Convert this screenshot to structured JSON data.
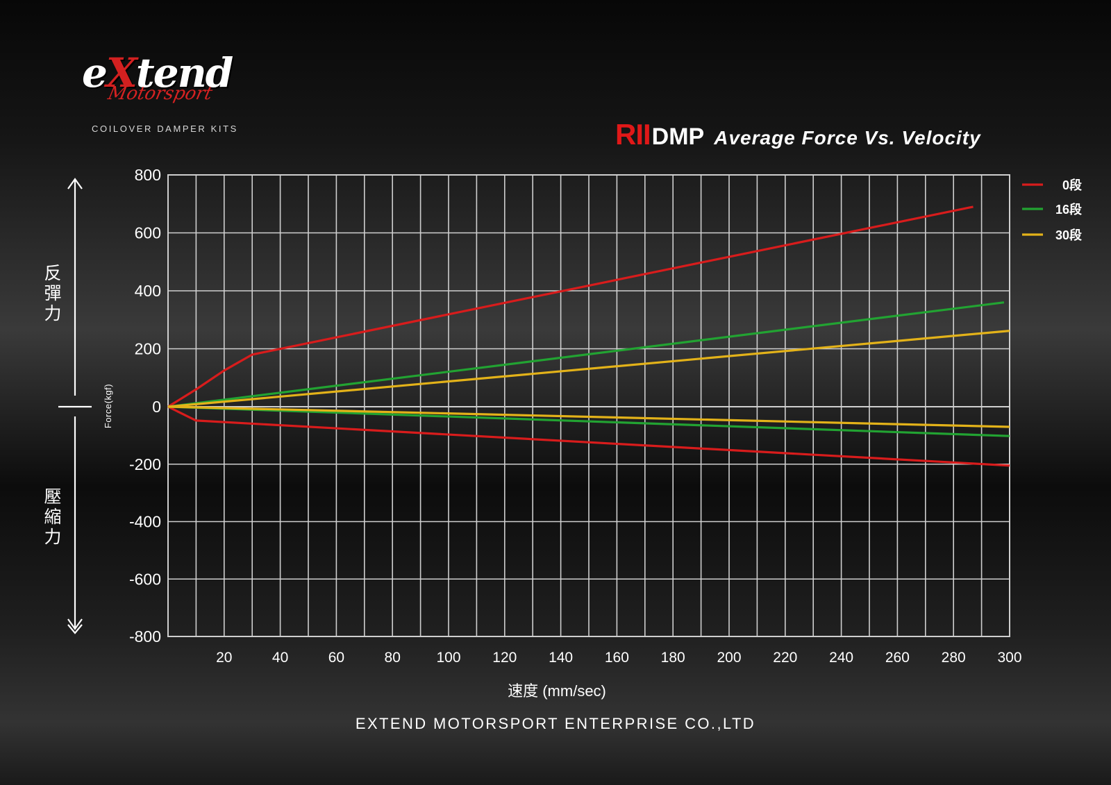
{
  "brand": {
    "logo_word_prefix": "e",
    "logo_word_x": "X",
    "logo_word_suffix": "tend",
    "logo_sub": "Motorsport",
    "tagline": "COILOVER DAMPER KITS"
  },
  "title": {
    "model": "RII",
    "product": "DMP",
    "text": "Average Force Vs. Velocity"
  },
  "side_labels": {
    "rebound": [
      "反",
      "彈",
      "力"
    ],
    "compression": [
      "壓",
      "縮",
      "力"
    ]
  },
  "footer": {
    "company": "EXTEND MOTORSPORT ENTERPRISE CO.,LTD"
  },
  "colors": {
    "red": "#d81c1c",
    "green": "#22a332",
    "yellow": "#e3b219",
    "grid": "#cfcfcf"
  },
  "chart_data": {
    "type": "line",
    "title": "RIIDMP Average Force Vs. Velocity",
    "xlabel": "速度 (mm/sec)",
    "ylabel": "Force(kgf)",
    "xlim": [
      0,
      300
    ],
    "ylim": [
      -800,
      800
    ],
    "x_ticks": [
      20,
      40,
      60,
      80,
      100,
      120,
      140,
      160,
      180,
      200,
      220,
      240,
      260,
      280,
      300
    ],
    "y_ticks": [
      800,
      600,
      400,
      200,
      0,
      -200,
      -400,
      -600,
      -800
    ],
    "grid": true,
    "legend_position": "top-right",
    "series": [
      {
        "name": "0段",
        "color": "#d81c1c",
        "part": "rebound",
        "x": [
          0,
          10,
          20,
          30,
          287
        ],
        "y": [
          0,
          60,
          125,
          180,
          690
        ]
      },
      {
        "name": "0段",
        "color": "#d81c1c",
        "part": "compression",
        "x": [
          0,
          10,
          300
        ],
        "y": [
          0,
          -48,
          -205
        ]
      },
      {
        "name": "16段",
        "color": "#22a332",
        "part": "rebound",
        "x": [
          0,
          298
        ],
        "y": [
          0,
          360
        ]
      },
      {
        "name": "16段",
        "color": "#22a332",
        "part": "compression",
        "x": [
          0,
          300
        ],
        "y": [
          0,
          -102
        ]
      },
      {
        "name": "30段",
        "color": "#e3b219",
        "part": "rebound",
        "x": [
          0,
          300
        ],
        "y": [
          0,
          262
        ]
      },
      {
        "name": "30段",
        "color": "#e3b219",
        "part": "compression",
        "x": [
          0,
          300
        ],
        "y": [
          0,
          -70
        ]
      }
    ],
    "legend": [
      {
        "label": "0段",
        "color": "#d81c1c"
      },
      {
        "label": "16段",
        "color": "#22a332"
      },
      {
        "label": "30段",
        "color": "#e3b219"
      }
    ]
  }
}
